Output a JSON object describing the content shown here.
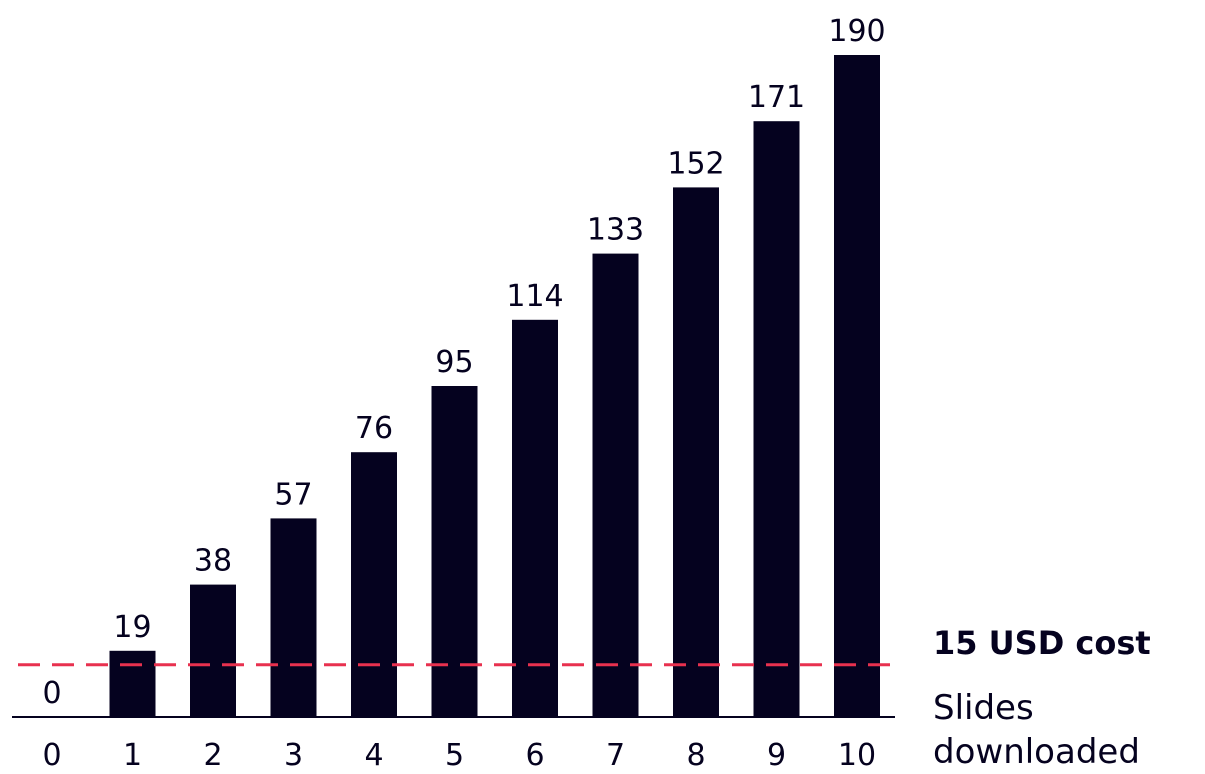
{
  "chart_data": {
    "type": "bar",
    "categories": [
      "0",
      "1",
      "2",
      "3",
      "4",
      "5",
      "6",
      "7",
      "8",
      "9",
      "10"
    ],
    "values": [
      0,
      19,
      38,
      57,
      76,
      95,
      114,
      133,
      152,
      171,
      190
    ],
    "xlabel": "Slides downloaded",
    "ylim": [
      0,
      190
    ],
    "grid": false,
    "legend": "none",
    "annotations": [
      {
        "text": "15 USD cost",
        "y": 15,
        "style": "dashed-line"
      }
    ],
    "colors": {
      "bar": "#05021f",
      "threshold": "#e8314f"
    }
  }
}
